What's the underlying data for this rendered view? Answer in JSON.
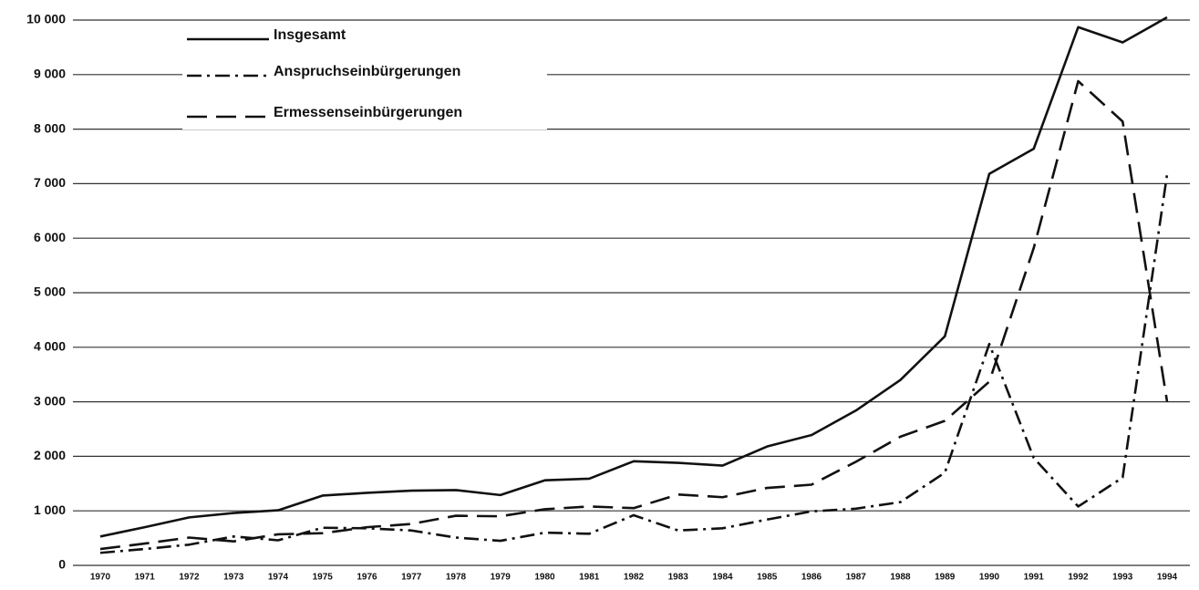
{
  "chart_data": {
    "type": "line",
    "categories": [
      "1970",
      "1971",
      "1972",
      "1973",
      "1974",
      "1975",
      "1976",
      "1977",
      "1978",
      "1979",
      "1980",
      "1981",
      "1982",
      "1983",
      "1984",
      "1985",
      "1986",
      "1987",
      "1988",
      "1989",
      "1990",
      "1991",
      "1992",
      "1993",
      "1994"
    ],
    "series": [
      {
        "name": "Insgesamt",
        "color": "#111111",
        "style": "solid",
        "values": [
          530,
          700,
          880,
          960,
          1010,
          1280,
          1330,
          1370,
          1380,
          1290,
          1560,
          1590,
          1910,
          1880,
          1830,
          2180,
          2390,
          2840,
          3400,
          4200,
          7180,
          7640,
          9870,
          9590,
          10050
        ]
      },
      {
        "name": "Anspruchseinbürgerungen",
        "color": "#111111",
        "style": "dashdot",
        "values": [
          230,
          300,
          380,
          530,
          460,
          690,
          680,
          640,
          510,
          450,
          600,
          580,
          920,
          640,
          680,
          840,
          990,
          1040,
          1160,
          1700,
          4060,
          1970,
          1080,
          1610,
          7170
        ]
      },
      {
        "name": "Ermessenseinbürgerungen",
        "color": "#111111",
        "style": "dashed",
        "values": [
          300,
          400,
          510,
          440,
          570,
          590,
          700,
          760,
          910,
          900,
          1030,
          1080,
          1050,
          1300,
          1250,
          1420,
          1480,
          1900,
          2360,
          2650,
          3370,
          5820,
          8880,
          8140,
          3000
        ]
      }
    ],
    "ylim": [
      0,
      10000
    ],
    "yticks": [
      0,
      {
        "value": 1000,
        "label": "1 000"
      },
      {
        "value": 2000,
        "label": "2 000"
      },
      {
        "value": 3000,
        "label": "3 000"
      },
      {
        "value": 4000,
        "label": "4 000"
      },
      {
        "value": 5000,
        "label": "5 000"
      },
      {
        "value": 6000,
        "label": "6 000"
      },
      {
        "value": 7000,
        "label": "7 000"
      },
      {
        "value": 8000,
        "label": "8 000"
      },
      {
        "value": 9000,
        "label": "9 000"
      },
      {
        "value": 10000,
        "label": "10 000"
      }
    ],
    "grid": true,
    "legend": "top-left"
  }
}
